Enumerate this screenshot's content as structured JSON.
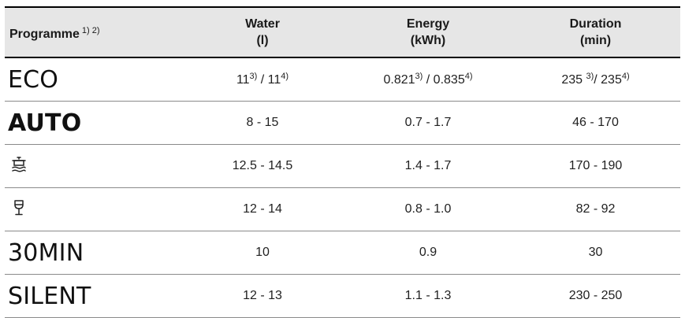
{
  "table": {
    "headers": {
      "programme": "Programme",
      "programme_notes": "1) 2)",
      "water_label": "Water",
      "water_unit": "(l)",
      "energy_label": "Energy",
      "energy_unit": "(kWh)",
      "duration_label": "Duration",
      "duration_unit": "(min)"
    },
    "rows": [
      {
        "programme": "ECO",
        "water": {
          "a": "11",
          "a_note": "3)",
          "sep": " / ",
          "b": "11",
          "b_note": "4)"
        },
        "energy": {
          "a": "0.821",
          "a_note": "3)",
          "sep": " / ",
          "b": "0.835",
          "b_note": "4)"
        },
        "duration": {
          "a": "235 ",
          "a_note": "3)",
          "sep": "/ ",
          "b": "235",
          "b_note": "4)"
        }
      },
      {
        "programme": "AUTO",
        "water": "8 - 15",
        "energy": "0.7 - 1.7",
        "duration": "46 - 170"
      },
      {
        "programme_icon": "pots-pans-icon",
        "water": "12.5 - 14.5",
        "energy": "1.4 - 1.7",
        "duration": "170 - 190"
      },
      {
        "programme_icon": "wine-glass-icon",
        "water": "12 - 14",
        "energy": "0.8 - 1.0",
        "duration": "82 - 92"
      },
      {
        "programme": "30MIN",
        "water": "10",
        "energy": "0.9",
        "duration": "30"
      },
      {
        "programme": "SILENT",
        "water": "12 - 13",
        "energy": "1.1 - 1.3",
        "duration": "230 - 250"
      }
    ]
  }
}
